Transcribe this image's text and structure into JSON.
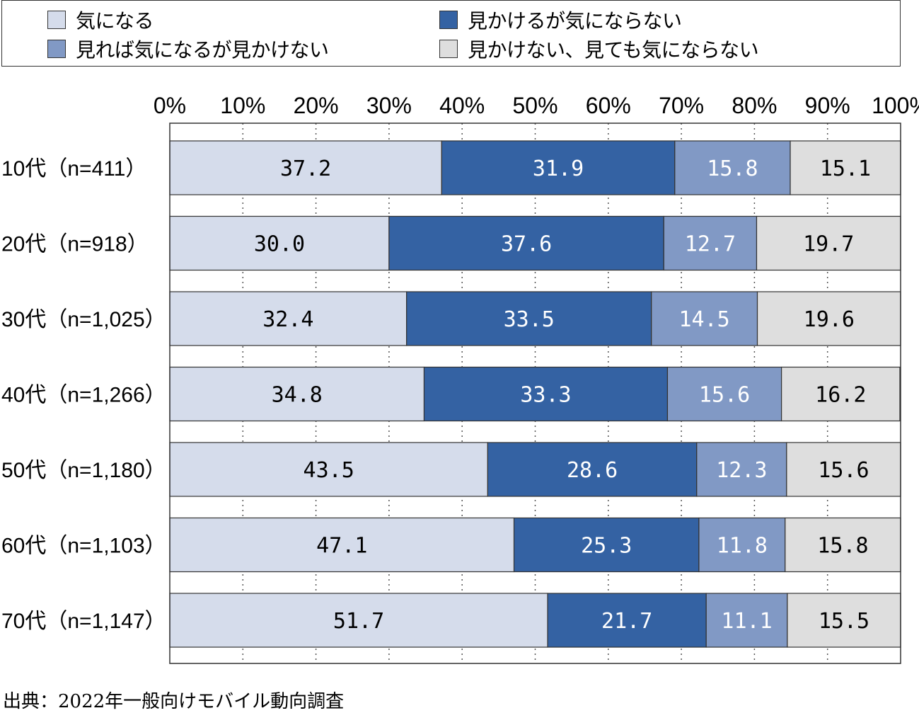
{
  "legend": [
    {
      "label": "気になる",
      "color": "#d5dceb"
    },
    {
      "label": "見かけるが気にならない",
      "color": "#3462a3"
    },
    {
      "label": "見れば気になるが見かけない",
      "color": "#8199c5"
    },
    {
      "label": "見かけない、見ても気にならない",
      "color": "#dedede"
    }
  ],
  "source": "出典：2022年一般向けモバイル動向調査",
  "chart_data": {
    "type": "bar",
    "orientation": "horizontal",
    "stacked": "percent",
    "xlim": [
      0,
      100
    ],
    "x_ticks": [
      "0%",
      "10%",
      "20%",
      "30%",
      "40%",
      "50%",
      "60%",
      "70%",
      "80%",
      "90%",
      "100%"
    ],
    "categories": [
      "10代（n=411）",
      "20代（n=918）",
      "30代（n=1,025）",
      "40代（n=1,266）",
      "50代（n=1,180）",
      "60代（n=1,103）",
      "70代（n=1,147）"
    ],
    "series": [
      {
        "name": "気になる",
        "color": "#d5dceb",
        "label_color": "#000000",
        "values": [
          37.2,
          30.0,
          32.4,
          34.8,
          43.5,
          47.1,
          51.7
        ],
        "labels": [
          "37.2",
          "30.0",
          "32.4",
          "34.8",
          "43.5",
          "47.1",
          "51.7"
        ]
      },
      {
        "name": "見かけるが気にならない",
        "color": "#3462a3",
        "label_color": "#ffffff",
        "values": [
          31.9,
          37.6,
          33.5,
          33.3,
          28.6,
          25.3,
          21.7
        ],
        "labels": [
          "31.9",
          "37.6",
          "33.5",
          "33.3",
          "28.6",
          "25.3",
          "21.7"
        ]
      },
      {
        "name": "見れば気になるが見かけない",
        "color": "#8199c5",
        "label_color": "#ffffff",
        "values": [
          15.8,
          12.7,
          14.5,
          15.6,
          12.3,
          11.8,
          11.1
        ],
        "labels": [
          "15.8",
          "12.7",
          "14.5",
          "15.6",
          "12.3",
          "11.8",
          "11.1"
        ]
      },
      {
        "name": "見かけない、見ても気にならない",
        "color": "#dedede",
        "label_color": "#000000",
        "values": [
          15.1,
          19.7,
          19.6,
          16.2,
          15.6,
          15.8,
          15.5
        ],
        "labels": [
          "15.1",
          "19.7",
          "19.6",
          "16.2",
          "15.6",
          "15.8",
          "15.5"
        ]
      }
    ],
    "grid": "dotted vertical",
    "legend_position": "top"
  }
}
